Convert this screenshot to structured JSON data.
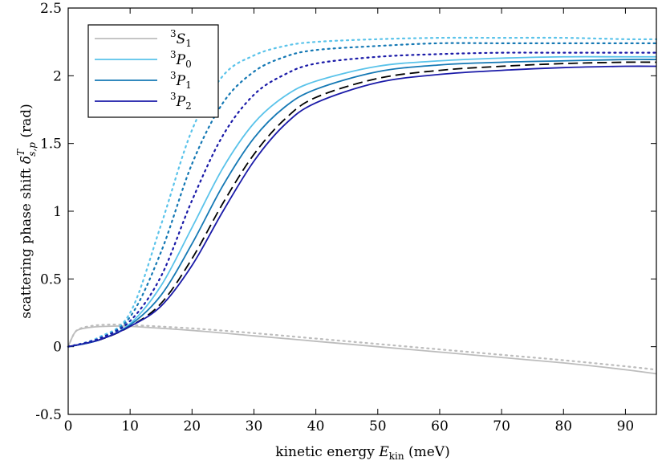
{
  "chart_data": {
    "type": "line",
    "xlabel_prefix": "kinetic energy ",
    "xlabel_var": "E",
    "xlabel_sub": "kin",
    "xlabel_unit": " (meV)",
    "ylabel_prefix": "scattering phase shift ",
    "ylabel_var": "δ",
    "ylabel_sup": "T",
    "ylabel_sub": "s,p",
    "ylabel_unit": " (rad)",
    "xlim": [
      0,
      95
    ],
    "ylim": [
      -0.5,
      2.5
    ],
    "xticks": [
      0,
      10,
      20,
      30,
      40,
      50,
      60,
      70,
      80,
      90
    ],
    "xtick_labels": [
      "0",
      "10",
      "20",
      "30",
      "40",
      "50",
      "60",
      "70",
      "80",
      "90"
    ],
    "yticks": [
      -0.5,
      0,
      0.5,
      1,
      1.5,
      2,
      2.5
    ],
    "ytick_labels": [
      "-0.5",
      "0",
      "0.5",
      "1",
      "1.5",
      "2",
      "2.5"
    ],
    "legend_position": "top-left",
    "colors": {
      "S1": "#bdbdbd",
      "P0": "#5ac3ea",
      "P1": "#1478b4",
      "P2": "#1a1aa8",
      "ref": "#000000"
    },
    "legend": [
      {
        "sup": "3",
        "letter": "S",
        "sub": "1",
        "color_key": "S1"
      },
      {
        "sup": "3",
        "letter": "P",
        "sub": "0",
        "color_key": "P0"
      },
      {
        "sup": "3",
        "letter": "P",
        "sub": "1",
        "color_key": "P1"
      },
      {
        "sup": "3",
        "letter": "P",
        "sub": "2",
        "color_key": "P2"
      }
    ],
    "series": [
      {
        "name": "3S1 solid",
        "color_key": "S1",
        "style": "solid",
        "x": [
          0,
          1,
          2,
          4,
          6,
          8,
          10,
          20,
          30,
          40,
          50,
          60,
          70,
          80,
          90,
          95
        ],
        "y": [
          0.0,
          0.1,
          0.13,
          0.145,
          0.15,
          0.152,
          0.15,
          0.12,
          0.08,
          0.04,
          0.0,
          -0.04,
          -0.08,
          -0.12,
          -0.17,
          -0.2
        ]
      },
      {
        "name": "3S1 dotted",
        "color_key": "S1",
        "style": "dotted",
        "x": [
          0,
          1,
          2,
          4,
          6,
          8,
          10,
          20,
          30,
          40,
          50,
          60,
          70,
          80,
          90,
          95
        ],
        "y": [
          0.0,
          0.1,
          0.135,
          0.155,
          0.162,
          0.163,
          0.16,
          0.135,
          0.1,
          0.06,
          0.02,
          -0.02,
          -0.06,
          -0.1,
          -0.145,
          -0.17
        ]
      },
      {
        "name": "3P0 solid",
        "color_key": "P0",
        "style": "solid",
        "x": [
          0,
          5,
          10,
          15,
          20,
          25,
          30,
          35,
          40,
          50,
          60,
          70,
          80,
          90,
          95
        ],
        "y": [
          0.0,
          0.05,
          0.17,
          0.45,
          0.88,
          1.32,
          1.65,
          1.85,
          1.96,
          2.07,
          2.11,
          2.13,
          2.14,
          2.14,
          2.14
        ]
      },
      {
        "name": "3P1 solid",
        "color_key": "P1",
        "style": "solid",
        "x": [
          0,
          5,
          10,
          15,
          20,
          25,
          30,
          35,
          40,
          50,
          60,
          70,
          80,
          90,
          95
        ],
        "y": [
          0.0,
          0.05,
          0.16,
          0.38,
          0.76,
          1.19,
          1.54,
          1.77,
          1.9,
          2.03,
          2.08,
          2.1,
          2.11,
          2.12,
          2.12
        ]
      },
      {
        "name": "reference dashed",
        "color_key": "ref",
        "style": "dashed",
        "x": [
          0,
          5,
          10,
          15,
          20,
          25,
          30,
          35,
          40,
          50,
          60,
          70,
          80,
          90,
          95
        ],
        "y": [
          0.0,
          0.05,
          0.15,
          0.32,
          0.65,
          1.06,
          1.42,
          1.68,
          1.84,
          1.98,
          2.04,
          2.07,
          2.09,
          2.1,
          2.1
        ]
      },
      {
        "name": "3P2 solid",
        "color_key": "P2",
        "style": "solid",
        "x": [
          0,
          5,
          10,
          15,
          20,
          25,
          30,
          35,
          40,
          50,
          60,
          70,
          80,
          90,
          95
        ],
        "y": [
          0.0,
          0.05,
          0.15,
          0.3,
          0.6,
          1.0,
          1.37,
          1.64,
          1.8,
          1.95,
          2.01,
          2.04,
          2.06,
          2.07,
          2.07
        ]
      },
      {
        "name": "3P0 dotted",
        "color_key": "P0",
        "style": "dotted",
        "x": [
          0,
          5,
          10,
          15,
          20,
          25,
          30,
          35,
          40,
          50,
          60,
          70,
          80,
          90,
          95
        ],
        "y": [
          0.0,
          0.07,
          0.25,
          0.9,
          1.6,
          2.0,
          2.15,
          2.22,
          2.25,
          2.27,
          2.28,
          2.28,
          2.28,
          2.27,
          2.27
        ]
      },
      {
        "name": "3P1 dotted",
        "color_key": "P1",
        "style": "dotted",
        "x": [
          0,
          5,
          10,
          15,
          20,
          25,
          30,
          35,
          40,
          50,
          60,
          70,
          80,
          90,
          95
        ],
        "y": [
          0.0,
          0.06,
          0.22,
          0.7,
          1.35,
          1.8,
          2.03,
          2.14,
          2.19,
          2.22,
          2.24,
          2.24,
          2.24,
          2.24,
          2.24
        ]
      },
      {
        "name": "3P2 dotted",
        "color_key": "P2",
        "style": "dotted",
        "x": [
          0,
          5,
          10,
          15,
          20,
          25,
          30,
          35,
          40,
          50,
          60,
          70,
          80,
          90,
          95
        ],
        "y": [
          0.0,
          0.06,
          0.19,
          0.52,
          1.08,
          1.56,
          1.86,
          2.01,
          2.09,
          2.14,
          2.16,
          2.17,
          2.17,
          2.17,
          2.17
        ]
      }
    ]
  }
}
